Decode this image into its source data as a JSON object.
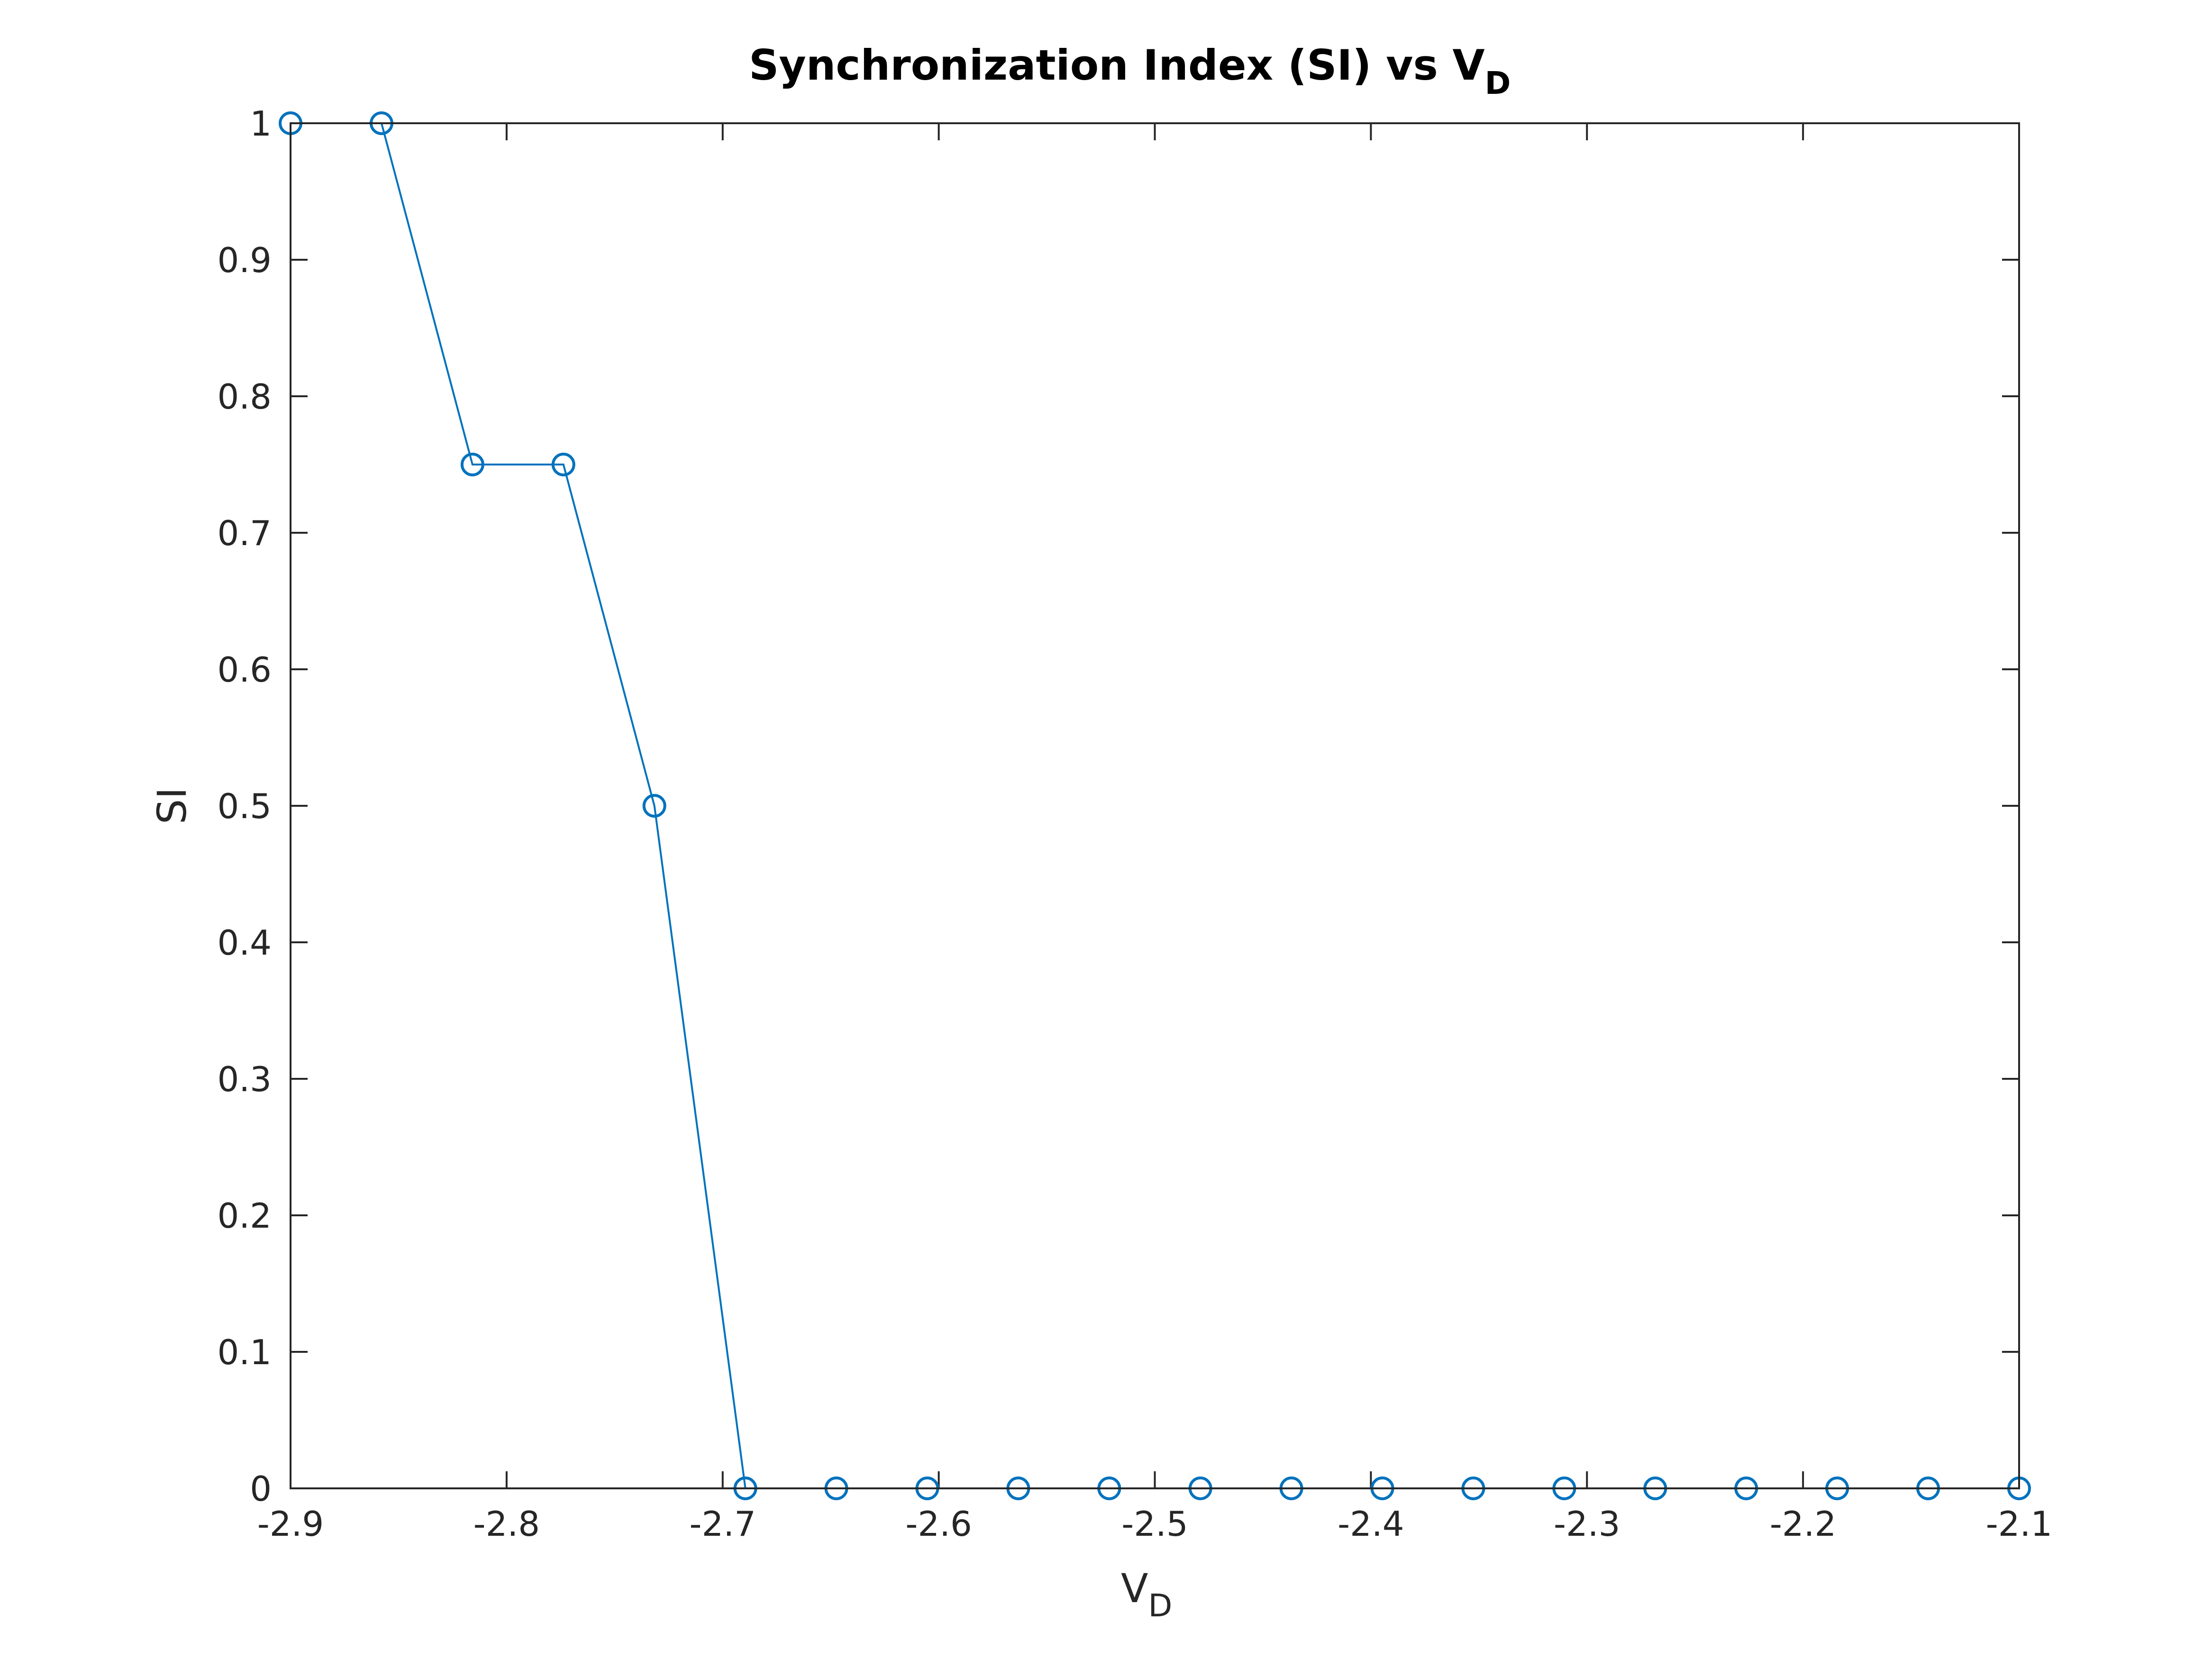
{
  "chart_data": {
    "type": "line",
    "title": {
      "main": "Synchronization Index (SI) vs V",
      "sub": "D"
    },
    "xlabel": {
      "main": "V",
      "sub": "D"
    },
    "ylabel": "SI",
    "xlim": [
      -2.9,
      -2.1
    ],
    "ylim": [
      0,
      1
    ],
    "xticks": [
      -2.9,
      -2.8,
      -2.7,
      -2.6,
      -2.5,
      -2.4,
      -2.3,
      -2.2,
      -2.1
    ],
    "xtick_labels": [
      "-2.9",
      "-2.8",
      "-2.7",
      "-2.6",
      "-2.5",
      "-2.4",
      "-2.3",
      "-2.2",
      "-2.1"
    ],
    "yticks": [
      0,
      0.1,
      0.2,
      0.3,
      0.4,
      0.5,
      0.6,
      0.7,
      0.8,
      0.9,
      1
    ],
    "ytick_labels": [
      "0",
      "0.1",
      "0.2",
      "0.3",
      "0.4",
      "0.5",
      "0.6",
      "0.7",
      "0.8",
      "0.9",
      "1"
    ],
    "grid": false,
    "series": [
      {
        "color": "#0072BD",
        "marker": "circle",
        "x": [
          -2.9,
          -2.8579,
          -2.8158,
          -2.7737,
          -2.7316,
          -2.6895,
          -2.6474,
          -2.6053,
          -2.5632,
          -2.5211,
          -2.4789,
          -2.4368,
          -2.3947,
          -2.3526,
          -2.3105,
          -2.2684,
          -2.2263,
          -2.1842,
          -2.1421,
          -2.1
        ],
        "y": [
          1,
          1,
          0.75,
          0.75,
          0.5,
          0,
          0,
          0,
          0,
          0,
          0,
          0,
          0,
          0,
          0,
          0,
          0,
          0,
          0,
          0
        ]
      }
    ]
  }
}
